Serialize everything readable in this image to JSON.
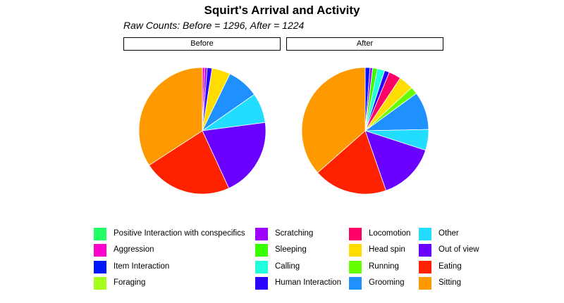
{
  "chart_data": {
    "type": "pie",
    "title": "Squirt's Arrival and Activity",
    "subtitle": "Raw Counts: Before = 1296, After = 1224",
    "panels": [
      {
        "label": "Before",
        "total": 1296,
        "slices": [
          {
            "category": "Positive Interaction with conspecifics",
            "value": 0
          },
          {
            "category": "Aggression",
            "value": 8
          },
          {
            "category": "Item Interaction",
            "value": 0
          },
          {
            "category": "Foraging",
            "value": 0
          },
          {
            "category": "Scratching",
            "value": 8
          },
          {
            "category": "Sleeping",
            "value": 0
          },
          {
            "category": "Calling",
            "value": 0
          },
          {
            "category": "Human Interaction",
            "value": 16
          },
          {
            "category": "Locomotion",
            "value": 0
          },
          {
            "category": "Head spin",
            "value": 61
          },
          {
            "category": "Running",
            "value": 0
          },
          {
            "category": "Grooming",
            "value": 105
          },
          {
            "category": "Other",
            "value": 99
          },
          {
            "category": "Out of view",
            "value": 262
          },
          {
            "category": "Eating",
            "value": 294
          },
          {
            "category": "Sitting",
            "value": 443
          }
        ]
      },
      {
        "label": "After",
        "total": 1224,
        "slices": [
          {
            "category": "Positive Interaction with conspecifics",
            "value": 0
          },
          {
            "category": "Aggression",
            "value": 0
          },
          {
            "category": "Item Interaction",
            "value": 15
          },
          {
            "category": "Foraging",
            "value": 0
          },
          {
            "category": "Scratching",
            "value": 8
          },
          {
            "category": "Sleeping",
            "value": 15
          },
          {
            "category": "Calling",
            "value": 23
          },
          {
            "category": "Human Interaction",
            "value": 15
          },
          {
            "category": "Locomotion",
            "value": 38
          },
          {
            "category": "Head spin",
            "value": 46
          },
          {
            "category": "Running",
            "value": 23
          },
          {
            "category": "Grooming",
            "value": 119
          },
          {
            "category": "Other",
            "value": 65
          },
          {
            "category": "Out of view",
            "value": 180
          },
          {
            "category": "Eating",
            "value": 230
          },
          {
            "category": "Sitting",
            "value": 447
          }
        ]
      }
    ],
    "legend": {
      "placement": "bottom",
      "entries": [
        {
          "label": "Positive Interaction with conspecifics",
          "color": "#22ff66"
        },
        {
          "label": "Aggression",
          "color": "#ff00cc"
        },
        {
          "label": "Item Interaction",
          "color": "#0015ff"
        },
        {
          "label": "Foraging",
          "color": "#a6ff1a"
        },
        {
          "label": "Scratching",
          "color": "#9e00ff"
        },
        {
          "label": "Sleeping",
          "color": "#3aff00"
        },
        {
          "label": "Calling",
          "color": "#22ffdd"
        },
        {
          "label": "Human Interaction",
          "color": "#2a00ff"
        },
        {
          "label": "Locomotion",
          "color": "#ff0066"
        },
        {
          "label": "Head spin",
          "color": "#ffdd00"
        },
        {
          "label": "Running",
          "color": "#66ff00"
        },
        {
          "label": "Grooming",
          "color": "#1e90ff"
        },
        {
          "label": "Other",
          "color": "#22ddff"
        },
        {
          "label": "Out of view",
          "color": "#6a00ff"
        },
        {
          "label": "Eating",
          "color": "#ff2200"
        },
        {
          "label": "Sitting",
          "color": "#ff9900"
        }
      ]
    }
  }
}
